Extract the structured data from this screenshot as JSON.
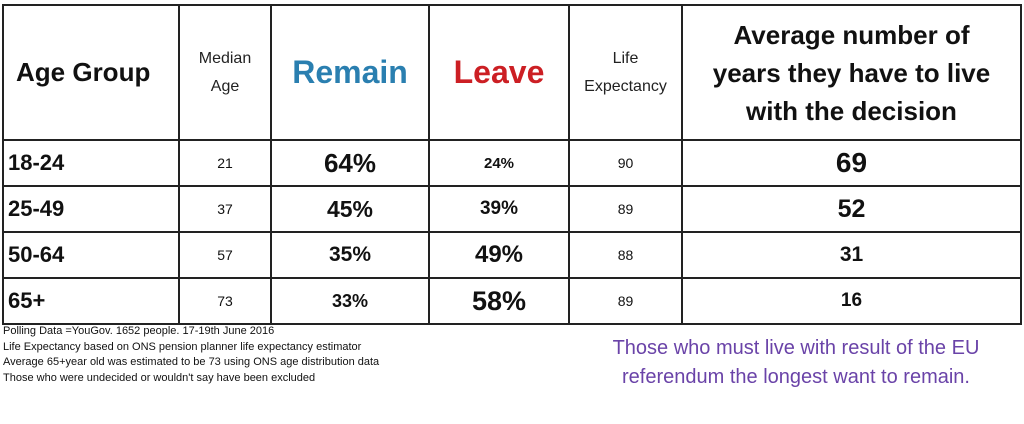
{
  "table": {
    "headers": {
      "age_group": "Age Group",
      "median_age": [
        "Median",
        "Age"
      ],
      "remain": "Remain",
      "leave": "Leave",
      "life_expectancy": [
        "Life",
        "Expectancy"
      ],
      "average_years": [
        "Average number of",
        "years they have to live",
        "with the decision"
      ]
    },
    "rows": [
      {
        "group": "18-24",
        "median": "21",
        "remain": "64%",
        "leave": "24%",
        "life": "90",
        "years": "69"
      },
      {
        "group": "25-49",
        "median": "37",
        "remain": "45%",
        "leave": "39%",
        "life": "89",
        "years": "52"
      },
      {
        "group": "50-64",
        "median": "57",
        "remain": "35%",
        "leave": "49%",
        "life": "88",
        "years": "31"
      },
      {
        "group": "65+",
        "median": "73",
        "remain": "33%",
        "leave": "58%",
        "life": "89",
        "years": "16"
      }
    ]
  },
  "notes": [
    "Polling Data =YouGov. 1652 people. 17-19th June 2016",
    "Life Expectancy based on ONS pension planner life expectancy estimator",
    "Average 65+year old was estimated to be 73 using ONS age distribution data",
    "Those who were undecided or wouldn't say have been excluded"
  ],
  "callout": [
    "Those who must live with result of the EU",
    "referendum the longest want to remain."
  ],
  "colors": {
    "remain": "#2a7fb0",
    "leave": "#cc1f24",
    "callout": "#6a43a8"
  }
}
